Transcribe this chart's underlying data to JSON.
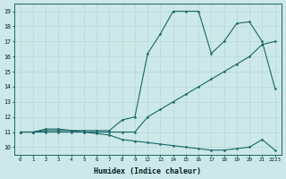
{
  "bg_color": "#cce8e8",
  "grid_color": "#b8d8d8",
  "line_color": "#1a6666",
  "xlabel": "Humidex (Indice chaleur)",
  "xtick_labels": [
    "0",
    "1",
    "2",
    "3",
    "4",
    "5",
    "6",
    "7",
    "8",
    "9",
    "12",
    "13",
    "14",
    "15",
    "16",
    "17",
    "18",
    "19",
    "20",
    "21",
    "2223"
  ],
  "xtick_positions": [
    0,
    1,
    2,
    3,
    4,
    5,
    6,
    7,
    8,
    9,
    10,
    11,
    12,
    13,
    14,
    15,
    16,
    17,
    18,
    19,
    20
  ],
  "yticks": [
    10,
    11,
    12,
    13,
    14,
    15,
    16,
    17,
    18,
    19
  ],
  "xlim": [
    -0.5,
    20.5
  ],
  "ylim": [
    9.5,
    19.5
  ],
  "line1_x": [
    0,
    1,
    2,
    3,
    4,
    5,
    6,
    7,
    8,
    9,
    10,
    11,
    12,
    13,
    14,
    15,
    16,
    17,
    18,
    19,
    20
  ],
  "line1_y": [
    11,
    11,
    11,
    11,
    11,
    11,
    10.9,
    10.8,
    10.5,
    10.4,
    10.3,
    10.2,
    10.1,
    10.0,
    9.9,
    9.8,
    9.8,
    9.9,
    10.0,
    10.5,
    9.8
  ],
  "line2_x": [
    0,
    1,
    2,
    3,
    4,
    5,
    6,
    7,
    8,
    9,
    10,
    11,
    12,
    13,
    14,
    15,
    16,
    17,
    18,
    19,
    20
  ],
  "line2_y": [
    11,
    11,
    11.1,
    11.1,
    11.1,
    11.0,
    11.0,
    11.0,
    11.0,
    11.0,
    12.0,
    12.5,
    13.0,
    13.5,
    14.0,
    14.5,
    15.0,
    15.5,
    16.0,
    16.8,
    17.0
  ],
  "line3_x": [
    0,
    1,
    2,
    3,
    4,
    5,
    6,
    7,
    8,
    9,
    10,
    11,
    12,
    13,
    14,
    15,
    16,
    17,
    18,
    19,
    20
  ],
  "line3_y": [
    11,
    11,
    11.2,
    11.2,
    11.1,
    11.1,
    11.1,
    11.1,
    11.8,
    12.0,
    16.2,
    17.5,
    19.0,
    19.0,
    19.0,
    16.2,
    17.0,
    18.2,
    18.3,
    17.0,
    13.9
  ]
}
